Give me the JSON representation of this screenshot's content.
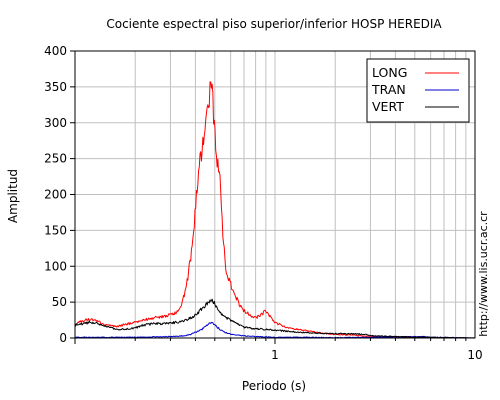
{
  "chart_data": {
    "type": "line",
    "title": "Cociente espectral piso superior/inferior  HOSP HEREDIA",
    "xlabel": "Periodo (s)",
    "ylabel": "Amplitud",
    "x_scale": "log",
    "xlim": [
      0.1,
      10
    ],
    "ylim": [
      0,
      400
    ],
    "x_ticks": [
      1,
      10
    ],
    "x_tick_labels": [
      "1",
      "10"
    ],
    "y_ticks": [
      0,
      50,
      100,
      150,
      200,
      250,
      300,
      350,
      400
    ],
    "y_tick_labels": [
      "0",
      "50",
      "100",
      "150",
      "200",
      "250",
      "300",
      "350",
      "400"
    ],
    "grid": true,
    "legend_position": "top-right",
    "watermark": "http://www.lis.ucr.ac.cr",
    "series": [
      {
        "name": "LONG",
        "color": "#ff0000",
        "points": [
          [
            0.1,
            20
          ],
          [
            0.11,
            24
          ],
          [
            0.12,
            26
          ],
          [
            0.13,
            24
          ],
          [
            0.14,
            18
          ],
          [
            0.16,
            16
          ],
          [
            0.18,
            19
          ],
          [
            0.2,
            22
          ],
          [
            0.22,
            25
          ],
          [
            0.25,
            28
          ],
          [
            0.28,
            30
          ],
          [
            0.3,
            32
          ],
          [
            0.32,
            36
          ],
          [
            0.34,
            45
          ],
          [
            0.36,
            70
          ],
          [
            0.38,
            115
          ],
          [
            0.4,
            180
          ],
          [
            0.42,
            240
          ],
          [
            0.44,
            275
          ],
          [
            0.46,
            310
          ],
          [
            0.47,
            330
          ],
          [
            0.48,
            350
          ],
          [
            0.49,
            320
          ],
          [
            0.5,
            290
          ],
          [
            0.51,
            260
          ],
          [
            0.53,
            220
          ],
          [
            0.55,
            140
          ],
          [
            0.57,
            90
          ],
          [
            0.6,
            75
          ],
          [
            0.63,
            60
          ],
          [
            0.67,
            45
          ],
          [
            0.7,
            38
          ],
          [
            0.75,
            32
          ],
          [
            0.8,
            28
          ],
          [
            0.85,
            32
          ],
          [
            0.9,
            38
          ],
          [
            0.95,
            30
          ],
          [
            1.0,
            22
          ],
          [
            1.1,
            16
          ],
          [
            1.2,
            14
          ],
          [
            1.3,
            12
          ],
          [
            1.5,
            9
          ],
          [
            1.7,
            7
          ],
          [
            2.0,
            5
          ],
          [
            2.5,
            4
          ],
          [
            3.0,
            2
          ],
          [
            4.0,
            1
          ],
          [
            6.0,
            0.5
          ],
          [
            10,
            0
          ]
        ]
      },
      {
        "name": "TRAN",
        "color": "#0000cc",
        "points": [
          [
            0.1,
            1
          ],
          [
            0.15,
            1
          ],
          [
            0.2,
            1
          ],
          [
            0.25,
            1.5
          ],
          [
            0.3,
            2
          ],
          [
            0.35,
            3
          ],
          [
            0.38,
            5
          ],
          [
            0.4,
            8
          ],
          [
            0.43,
            12
          ],
          [
            0.45,
            16
          ],
          [
            0.47,
            20
          ],
          [
            0.48,
            22
          ],
          [
            0.5,
            18
          ],
          [
            0.53,
            12
          ],
          [
            0.56,
            8
          ],
          [
            0.6,
            5
          ],
          [
            0.7,
            3
          ],
          [
            0.8,
            2
          ],
          [
            1.0,
            1
          ],
          [
            1.5,
            1
          ],
          [
            2.0,
            0.5
          ],
          [
            5.5,
            2
          ],
          [
            6.0,
            1
          ],
          [
            10,
            0
          ]
        ]
      },
      {
        "name": "VERT",
        "color": "#000000",
        "points": [
          [
            0.1,
            18
          ],
          [
            0.11,
            20
          ],
          [
            0.12,
            22
          ],
          [
            0.13,
            20
          ],
          [
            0.14,
            17
          ],
          [
            0.15,
            14
          ],
          [
            0.17,
            12
          ],
          [
            0.2,
            14
          ],
          [
            0.22,
            18
          ],
          [
            0.25,
            20
          ],
          [
            0.28,
            20
          ],
          [
            0.3,
            21
          ],
          [
            0.33,
            22
          ],
          [
            0.35,
            24
          ],
          [
            0.37,
            27
          ],
          [
            0.4,
            32
          ],
          [
            0.42,
            38
          ],
          [
            0.44,
            42
          ],
          [
            0.46,
            50
          ],
          [
            0.48,
            55
          ],
          [
            0.5,
            48
          ],
          [
            0.52,
            38
          ],
          [
            0.55,
            30
          ],
          [
            0.6,
            25
          ],
          [
            0.65,
            20
          ],
          [
            0.7,
            15
          ],
          [
            0.8,
            13
          ],
          [
            0.9,
            12
          ],
          [
            1.0,
            11
          ],
          [
            1.2,
            9
          ],
          [
            1.5,
            7
          ],
          [
            2.0,
            6
          ],
          [
            2.5,
            6
          ],
          [
            2.8,
            5
          ],
          [
            3.2,
            3
          ],
          [
            4.0,
            2
          ],
          [
            6.0,
            1
          ],
          [
            10,
            0
          ]
        ]
      }
    ]
  }
}
